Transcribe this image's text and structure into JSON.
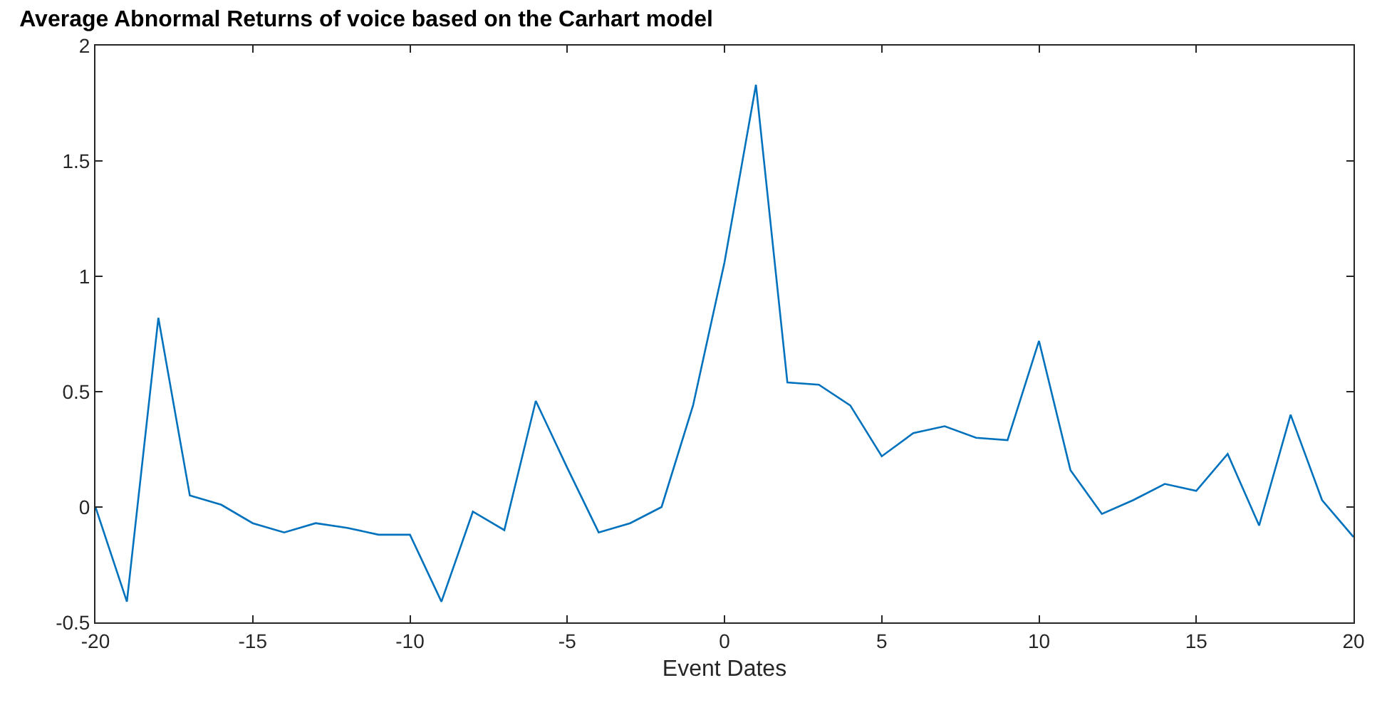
{
  "chart_data": {
    "type": "line",
    "title": "Average Abnormal Returns of voice based on the Carhart model",
    "xlabel": "Event Dates",
    "x": [
      -20,
      -19,
      -18,
      -17,
      -16,
      -15,
      -14,
      -13,
      -12,
      -11,
      -10,
      -9,
      -8,
      -7,
      -6,
      -5,
      -4,
      -3,
      -2,
      -1,
      0,
      1,
      2,
      3,
      4,
      5,
      6,
      7,
      8,
      9,
      10,
      11,
      12,
      13,
      14,
      15,
      16,
      17,
      18,
      19,
      20
    ],
    "series": [
      {
        "color": "#0072bd",
        "values": [
          0.0,
          -0.41,
          0.82,
          0.05,
          0.01,
          -0.07,
          -0.11,
          -0.07,
          -0.09,
          -0.12,
          -0.12,
          -0.41,
          -0.02,
          -0.1,
          0.46,
          0.17,
          -0.11,
          -0.07,
          0.0,
          0.44,
          1.06,
          1.83,
          0.54,
          0.53,
          0.44,
          0.22,
          0.32,
          0.35,
          0.3,
          0.29,
          0.72,
          0.16,
          -0.03,
          0.03,
          0.1,
          0.07,
          0.23,
          -0.08,
          0.4,
          0.03,
          -0.13
        ]
      }
    ],
    "xlim": [
      -20,
      20
    ],
    "xticks": [
      -20,
      -15,
      -10,
      -5,
      0,
      5,
      10,
      15,
      20
    ],
    "ylim": [
      -0.5,
      2
    ],
    "yticks": [
      -0.5,
      0,
      0.5,
      1,
      1.5,
      2
    ],
    "marker": "none",
    "line_style": "solid"
  }
}
